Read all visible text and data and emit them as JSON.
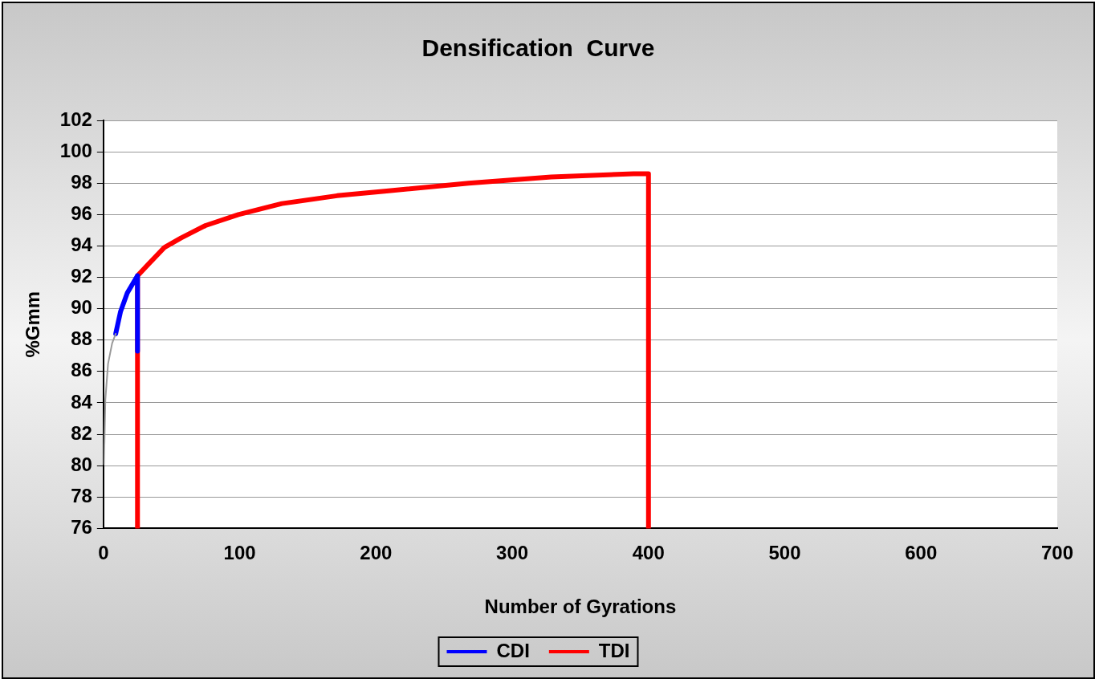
{
  "chart_data": {
    "type": "line",
    "title": "Densification  Curve",
    "xlabel": "Number of Gyrations",
    "ylabel": "%Gmm",
    "xlim": [
      0,
      700
    ],
    "xticks": [
      0,
      100,
      200,
      300,
      400,
      500,
      600,
      700
    ],
    "ylim": [
      76,
      102
    ],
    "yticks": [
      76,
      78,
      80,
      82,
      84,
      86,
      88,
      90,
      92,
      94,
      96,
      98,
      100,
      102
    ],
    "grid": "y",
    "legend": "bottom",
    "marker": "none",
    "line_style": "solid",
    "series": [
      {
        "color": "#999999",
        "x": [
          0.4,
          1.4,
          3.4,
          6.4,
          9
        ],
        "values": [
          80.1,
          84.2,
          86.5,
          87.8,
          88.4
        ]
      },
      {
        "name": "CDI",
        "color": "#0000ff",
        "x": [
          9,
          12.5,
          17.5,
          23.6,
          25,
          25
        ],
        "values": [
          88.4,
          89.8,
          91.0,
          91.9,
          92.1,
          87.3
        ]
      },
      {
        "name": "TDI",
        "color": "#ff0000",
        "x": [
          25,
          25,
          32.6,
          44.7,
          56.8,
          74.9,
          99,
          131,
          171.5,
          207.8,
          268,
          328.6,
          389,
          400,
          400
        ],
        "values": [
          76,
          92.1,
          92.8,
          93.9,
          94.5,
          95.3,
          96.0,
          96.7,
          97.2,
          97.5,
          98.0,
          98.4,
          98.6,
          98.6,
          76
        ]
      }
    ]
  }
}
